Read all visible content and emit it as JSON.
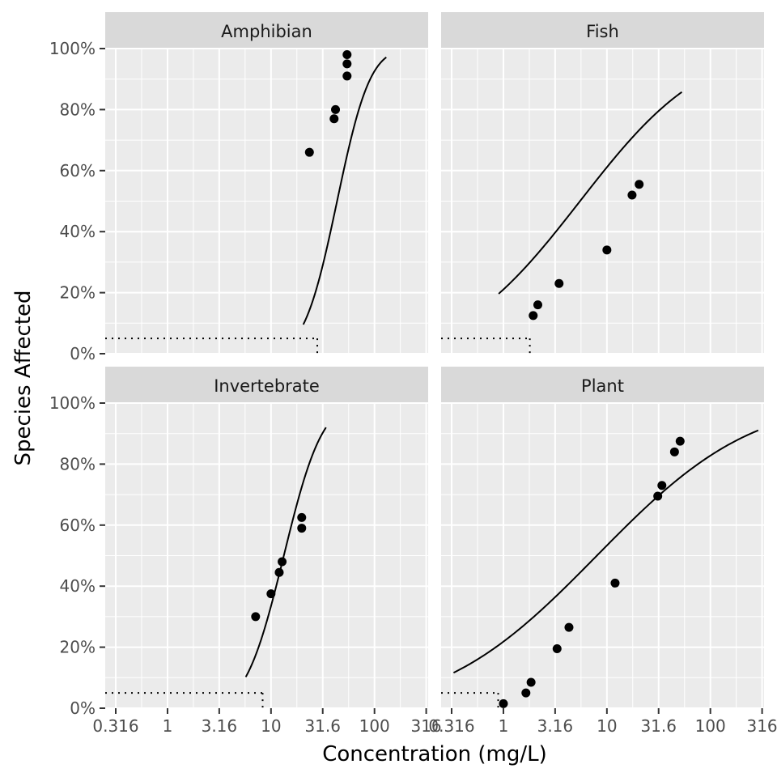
{
  "chart_data": {
    "type": "scatter",
    "xlabel": "Concentration (mg/L)",
    "ylabel": "Species Affected",
    "x_scale": "log10",
    "xlim": [
      0.25,
      330
    ],
    "ylim": [
      0,
      1
    ],
    "x_ticks": [
      0.316,
      1,
      3.16,
      10,
      31.6,
      100,
      316
    ],
    "x_tick_labels": [
      "0.316",
      "1",
      "3.16",
      "10",
      "31.6",
      "100",
      "316"
    ],
    "y_ticks": [
      0,
      0.2,
      0.4,
      0.6,
      0.8,
      1.0
    ],
    "y_tick_labels": [
      "0%",
      "20%",
      "40%",
      "60%",
      "80%",
      "100%"
    ],
    "grid": true,
    "hazard_level": 0.05,
    "colors": {
      "panel_background": "#ebebeb",
      "strip_background": "#d9d9d9",
      "grid": "#ffffff",
      "points": "#000000",
      "curve": "#000000"
    },
    "facets": [
      {
        "label": "Amphibian",
        "points": [
          {
            "x": 23.5,
            "y": 0.66
          },
          {
            "x": 40.7,
            "y": 0.77
          },
          {
            "x": 42.0,
            "y": 0.8
          },
          {
            "x": 54.3,
            "y": 0.91
          },
          {
            "x": 54.3,
            "y": 0.95
          },
          {
            "x": 54.3,
            "y": 0.98
          }
        ],
        "curve": {
          "median": 43.5,
          "sigma": 0.25,
          "x_from": 20.5,
          "x_to": 130
        },
        "hc5": 28.0
      },
      {
        "label": "Fish",
        "points": [
          {
            "x": 1.94,
            "y": 0.125
          },
          {
            "x": 2.15,
            "y": 0.16
          },
          {
            "x": 3.45,
            "y": 0.23
          },
          {
            "x": 10.0,
            "y": 0.34
          },
          {
            "x": 17.5,
            "y": 0.52
          },
          {
            "x": 20.5,
            "y": 0.555
          }
        ],
        "curve": {
          "median": 5.5,
          "sigma": 0.92,
          "x_from": 0.9,
          "x_to": 53
        },
        "hc5": 1.8
      },
      {
        "label": "Invertebrate",
        "points": [
          {
            "x": 7.1,
            "y": 0.3
          },
          {
            "x": 10.0,
            "y": 0.375
          },
          {
            "x": 12.0,
            "y": 0.445
          },
          {
            "x": 12.8,
            "y": 0.48
          },
          {
            "x": 19.8,
            "y": 0.59
          },
          {
            "x": 19.8,
            "y": 0.625
          }
        ],
        "curve": {
          "median": 13.3,
          "sigma": 0.29,
          "x_from": 5.7,
          "x_to": 34
        },
        "hc5": 8.3
      },
      {
        "label": "Plant",
        "points": [
          {
            "x": 1.0,
            "y": 0.015
          },
          {
            "x": 1.65,
            "y": 0.05
          },
          {
            "x": 1.85,
            "y": 0.085
          },
          {
            "x": 3.3,
            "y": 0.195
          },
          {
            "x": 4.3,
            "y": 0.265
          },
          {
            "x": 12.0,
            "y": 0.41
          },
          {
            "x": 31.0,
            "y": 0.695
          },
          {
            "x": 34.0,
            "y": 0.73
          },
          {
            "x": 45.0,
            "y": 0.84
          },
          {
            "x": 51.0,
            "y": 0.875
          }
        ],
        "curve": {
          "median": 8.0,
          "sigma": 1.16,
          "x_from": 0.33,
          "x_to": 290
        },
        "hc5": 0.89
      }
    ]
  }
}
